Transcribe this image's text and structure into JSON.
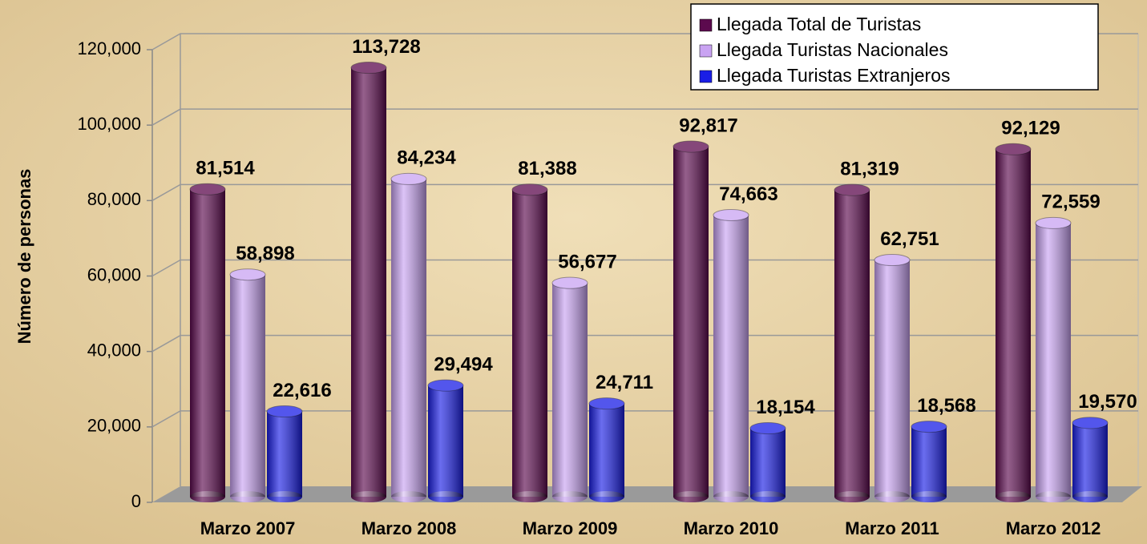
{
  "chart_data": {
    "type": "bar",
    "ylabel": "Número de personas",
    "categories": [
      "Marzo 2007",
      "Marzo 2008",
      "Marzo 2009",
      "Marzo 2010",
      "Marzo 2011",
      "Marzo 2012"
    ],
    "series": [
      {
        "name": "Llegada Total de Turistas",
        "color": "#5c0a4e",
        "values": [
          81514,
          113728,
          81388,
          92817,
          81319,
          92129
        ],
        "value_labels": [
          "81,514",
          "113,728",
          "81,388",
          "92,817",
          "81,319",
          "92,129"
        ]
      },
      {
        "name": "Llegada Turistas Nacionales",
        "color": "#c9a3f2",
        "values": [
          58898,
          84234,
          56677,
          74663,
          62751,
          72559
        ],
        "value_labels": [
          "58,898",
          "84,234",
          "56,677",
          "74,663",
          "62,751",
          "72,559"
        ]
      },
      {
        "name": "Llegada Turistas Extranjeros",
        "color": "#1a1ee6",
        "values": [
          22616,
          29494,
          24711,
          18154,
          18568,
          19570
        ],
        "value_labels": [
          "22,616",
          "29,494",
          "24,711",
          "18,154",
          "18,568",
          "19,570"
        ]
      }
    ],
    "ylim": [
      0,
      120000
    ],
    "yticks": [
      0,
      {
        "value": 20000,
        "label": "20,000"
      },
      {
        "value": 40000,
        "label": "40,000"
      },
      {
        "value": 60000,
        "label": "60,000"
      },
      {
        "value": 80000,
        "label": "80,000"
      },
      {
        "value": 100000,
        "label": "100,000"
      },
      {
        "value": 120000,
        "label": "120,000"
      }
    ],
    "grid": true,
    "legend": "top-right"
  }
}
